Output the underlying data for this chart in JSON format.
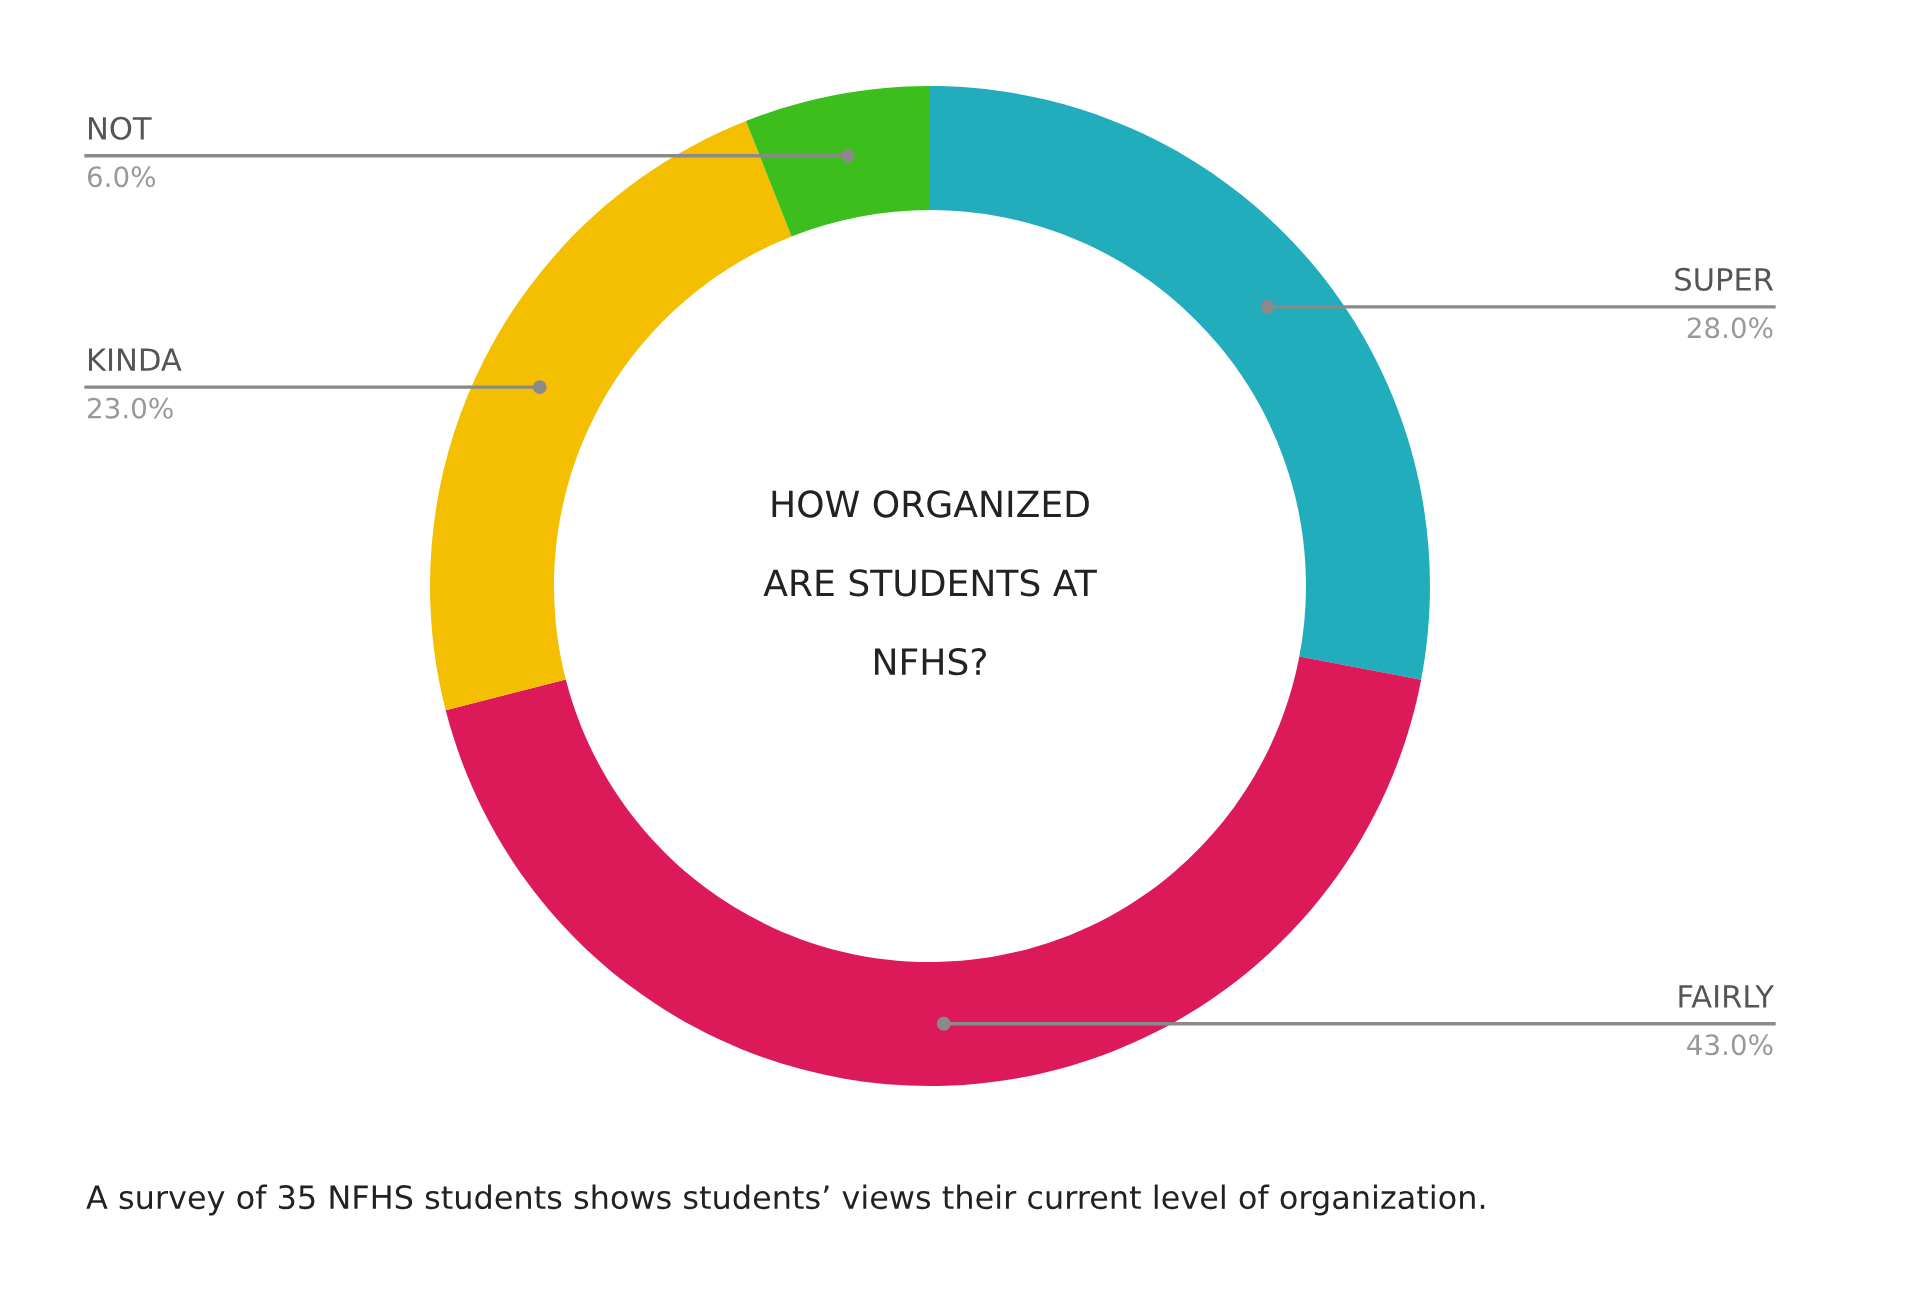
{
  "chart_data": {
    "type": "donut",
    "title": "HOW ORGANIZED\nARE STUDENTS AT\nNFHS?",
    "categories": [
      "SUPER",
      "FAIRLY",
      "KINDA",
      "NOT"
    ],
    "values": [
      28.0,
      43.0,
      23.0,
      6.0
    ],
    "colors": [
      "#22adbd",
      "#dc1a5a",
      "#f4bf00",
      "#3cbe1c"
    ],
    "value_labels": [
      "28.0%",
      "43.0%",
      "23.0%",
      "6.0%"
    ],
    "annotations": [
      "A survey of 35 NFHS students shows students’ views their current level of organization."
    ]
  }
}
